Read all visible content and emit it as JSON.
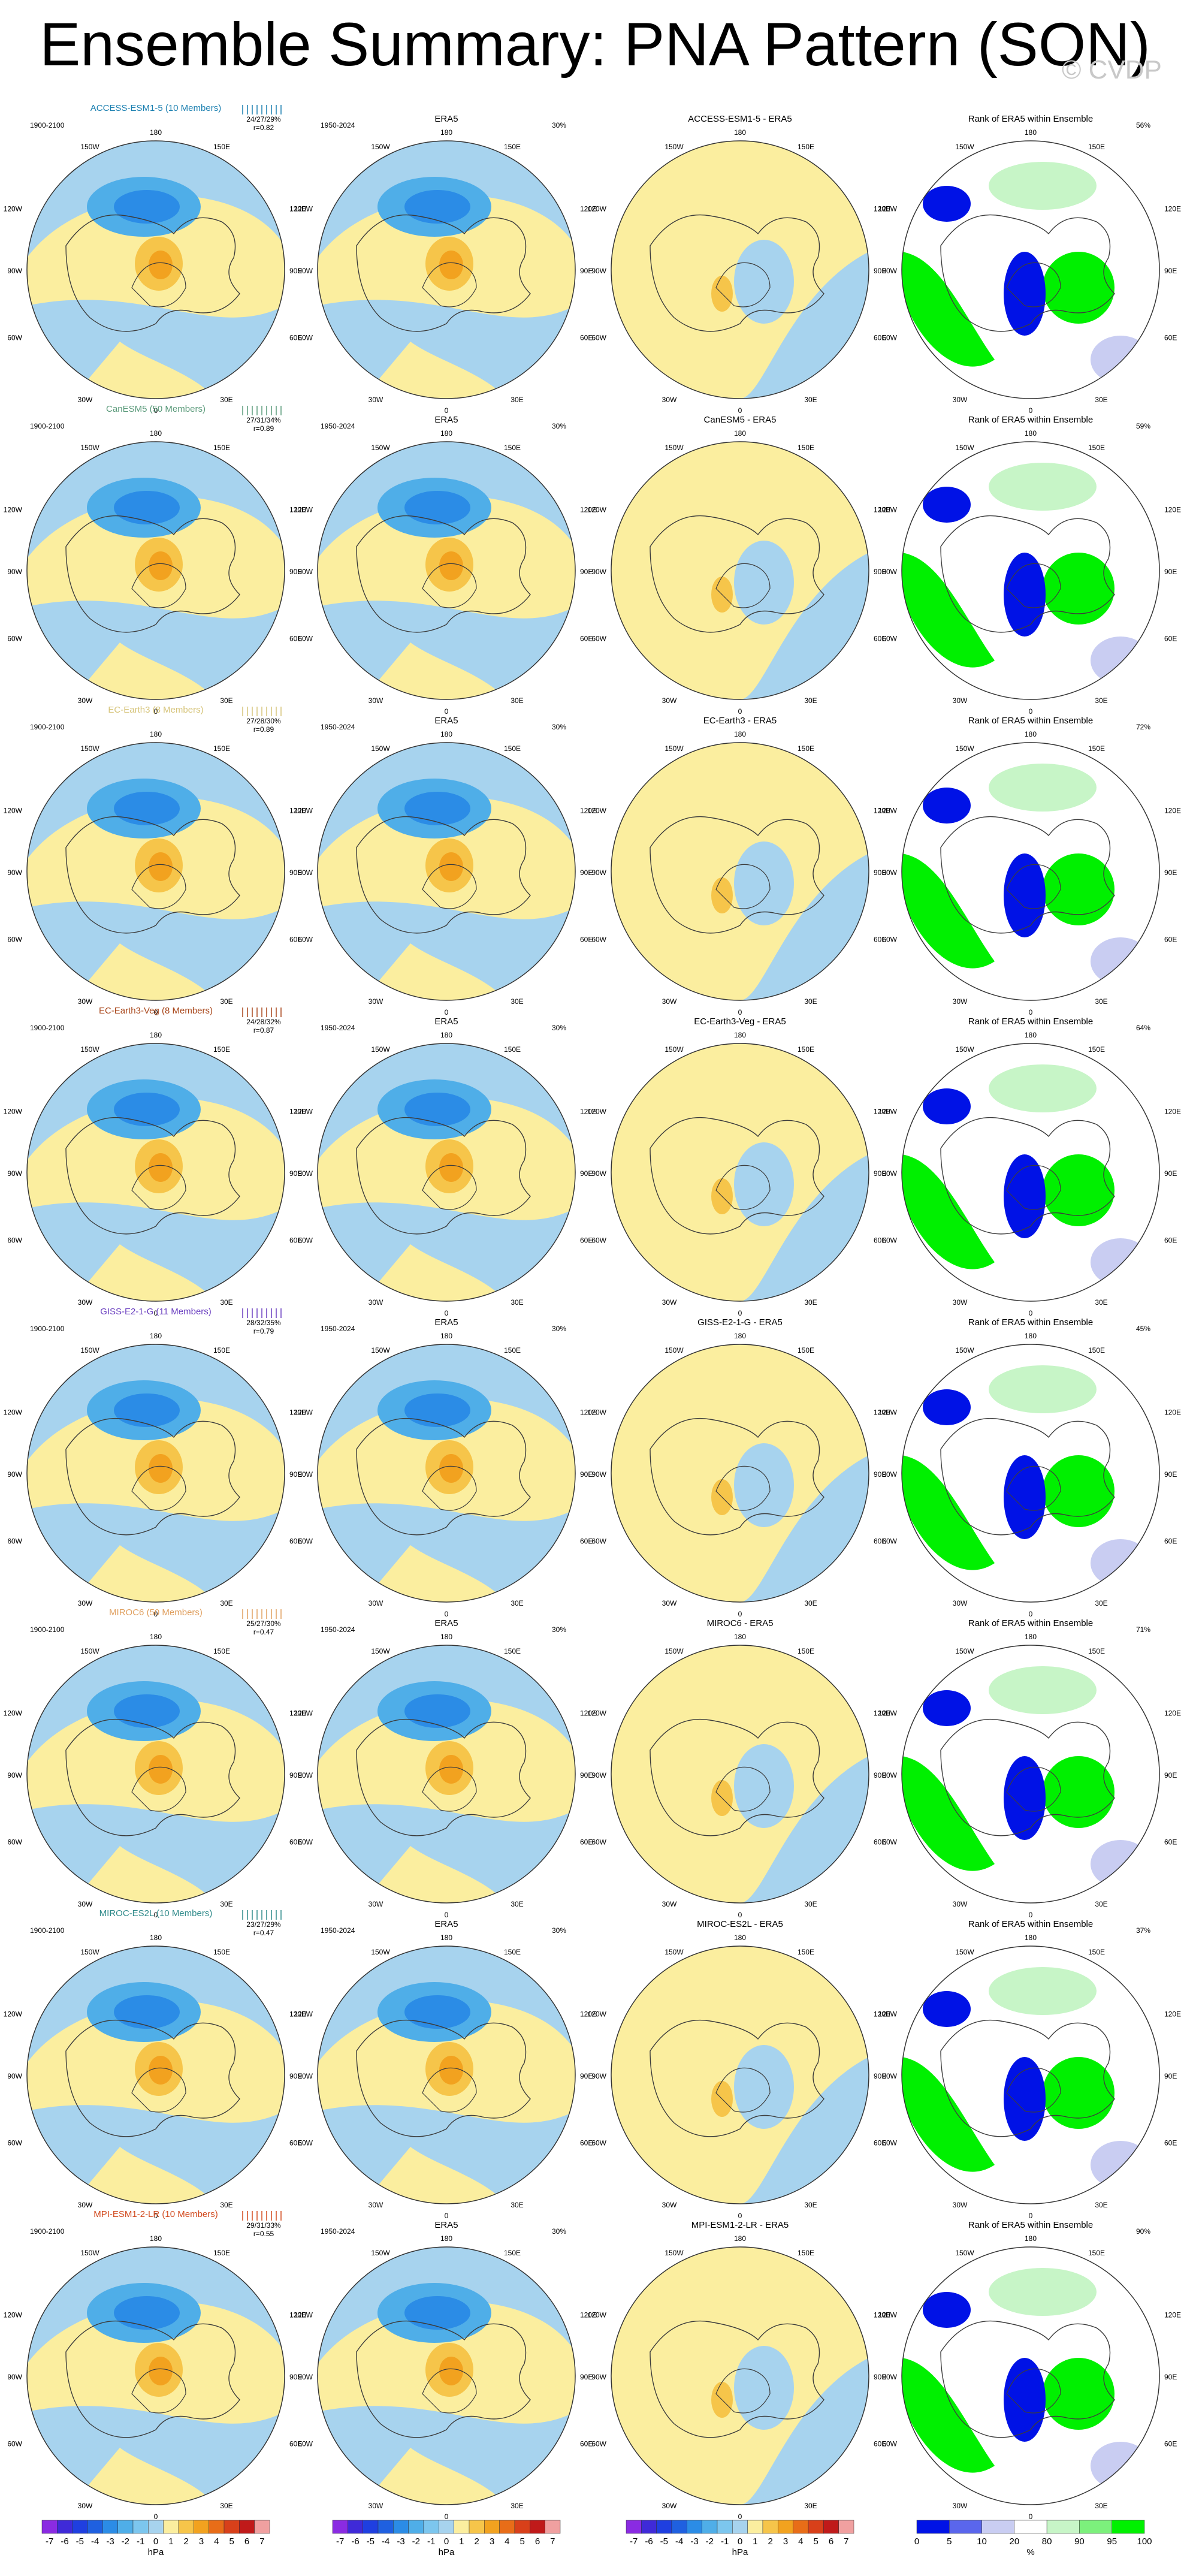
{
  "title": "Ensemble Summary: PNA Pattern (SON)",
  "watermark": "© CVDP",
  "colors": {
    "ocean_blue": "#a7d3ee",
    "land_yellow": "#fbee9f",
    "blue_2": "#4faee8",
    "blue_3": "#2b8ce6",
    "blue_4": "#1f60e0",
    "orange_2": "#f6c54a",
    "orange_3": "#f2a21f",
    "orange_4": "#e86d18",
    "rank_blue": "#0012e6",
    "rank_lightblue": "#c9cdf2",
    "rank_green": "#00f000",
    "rank_lightgreen": "#c7f5c7"
  },
  "common": {
    "era5_title": "ERA5",
    "era5_period": "1950-2024",
    "rank_title": "Rank of ERA5 within Ensemble",
    "era5_pct": "30%",
    "lon_top": "180",
    "lon_bottom": "0",
    "lon_ul": "150W",
    "lon_ur": "150E",
    "lon_l1": "120W",
    "lon_r1": "120E",
    "lon_l2": "90W",
    "lon_r2": "90E",
    "lon_l3": "60W",
    "lon_r3": "60E",
    "lon_ll": "30W",
    "lon_lr": "30E"
  },
  "rows": [
    {
      "model_label": "ACCESS-ESM1-5 (10 Members)",
      "model_color": "#1a7fb0",
      "period": "1900-2100",
      "stats": "24/27/29%",
      "corr": "r=0.82",
      "diff_title": "ACCESS-ESM1-5 - ERA5",
      "rank_pct": "56%"
    },
    {
      "model_label": "CanESM5 (50 Members)",
      "model_color": "#5a9a7a",
      "period": "1900-2100",
      "stats": "27/31/34%",
      "corr": "r=0.89",
      "diff_title": "CanESM5 - ERA5",
      "rank_pct": "59%"
    },
    {
      "model_label": "EC-Earth3 (8 Members)",
      "model_color": "#d6c47a",
      "period": "1900-2100",
      "stats": "27/28/30%",
      "corr": "r=0.89",
      "diff_title": "EC-Earth3 - ERA5",
      "rank_pct": "72%"
    },
    {
      "model_label": "EC-Earth3-Veg (8 Members)",
      "model_color": "#a8461a",
      "period": "1900-2100",
      "stats": "24/28/32%",
      "corr": "r=0.87",
      "diff_title": "EC-Earth3-Veg - ERA5",
      "rank_pct": "64%"
    },
    {
      "model_label": "GISS-E2-1-G (11 Members)",
      "model_color": "#6a3fc0",
      "period": "1900-2100",
      "stats": "28/32/35%",
      "corr": "r=0.79",
      "diff_title": "GISS-E2-1-G - ERA5",
      "rank_pct": "45%"
    },
    {
      "model_label": "MIROC6 (50 Members)",
      "model_color": "#e0a060",
      "period": "1900-2100",
      "stats": "25/27/30%",
      "corr": "r=0.47",
      "diff_title": "MIROC6 - ERA5",
      "rank_pct": "71%"
    },
    {
      "model_label": "MIROC-ES2L (10 Members)",
      "model_color": "#2f8a8a",
      "period": "1900-2100",
      "stats": "23/27/29%",
      "corr": "r=0.47",
      "diff_title": "MIROC-ES2L - ERA5",
      "rank_pct": "37%"
    },
    {
      "model_label": "MPI-ESM1-2-LR (10 Members)",
      "model_color": "#d24a1e",
      "period": "1900-2100",
      "stats": "29/31/33%",
      "corr": "r=0.55",
      "diff_title": "MPI-ESM1-2-LR - ERA5",
      "rank_pct": "90%"
    }
  ],
  "colorbars": {
    "hpa_ticks": [
      "-7",
      "-6",
      "-5",
      "-4",
      "-3",
      "-2",
      "-1",
      "0",
      "1",
      "2",
      "3",
      "4",
      "5",
      "6",
      "7"
    ],
    "hpa_unit": "hPa",
    "hpa_colors": [
      "#8a2be2",
      "#3f2ad8",
      "#1f3fe0",
      "#1f60e0",
      "#2b8ce6",
      "#4faee8",
      "#7cc6ee",
      "#a7d3ee",
      "#fbee9f",
      "#f6c54a",
      "#f2a21f",
      "#e86d18",
      "#d8401a",
      "#c01a1a",
      "#f0a0a0"
    ],
    "rank_ticks": [
      "0",
      "5",
      "10",
      "20",
      "80",
      "90",
      "95",
      "100"
    ],
    "rank_unit": "%",
    "rank_colors": [
      "#0012e6",
      "#5a66ec",
      "#c9cdf2",
      "#ffffff",
      "#c7f5c7",
      "#7cf07c",
      "#00f000"
    ]
  }
}
